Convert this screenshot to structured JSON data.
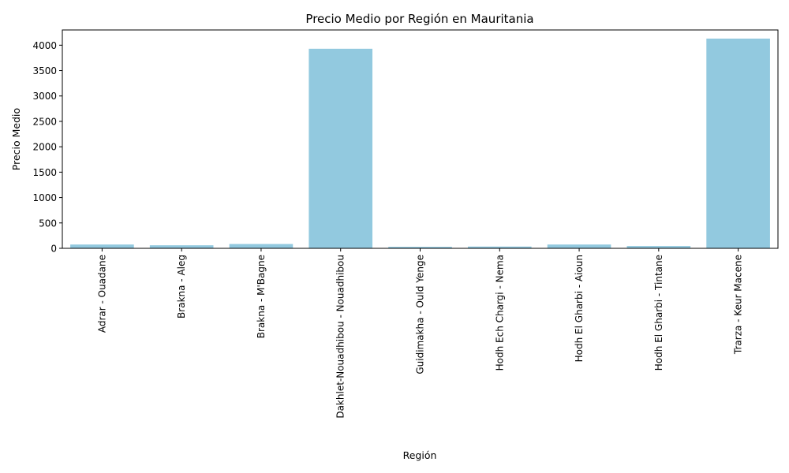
{
  "chart_data": {
    "type": "bar",
    "title": "Precio Medio por Región en Mauritania",
    "xlabel": "Región",
    "ylabel": "Precio Medio",
    "categories": [
      "Adrar - Ouadane",
      "Brakna - Aleg",
      "Brakna - M'Bagne",
      "Dakhlet-Nouadhibou - Nouadhibou",
      "Guidimakha - Ould Yenge",
      "Hodh Ech Chargi - Nema",
      "Hodh El Gharbi - Aioun",
      "Hodh El Gharbi - Tintane",
      "Trarza - Keur Macene"
    ],
    "values": [
      75,
      60,
      85,
      3930,
      30,
      35,
      75,
      45,
      4130
    ],
    "ylim": [
      0,
      4300
    ],
    "yticks": [
      0,
      500,
      1000,
      1500,
      2000,
      2500,
      3000,
      3500,
      4000
    ],
    "grid": false,
    "bar_color": "#92c9df"
  }
}
